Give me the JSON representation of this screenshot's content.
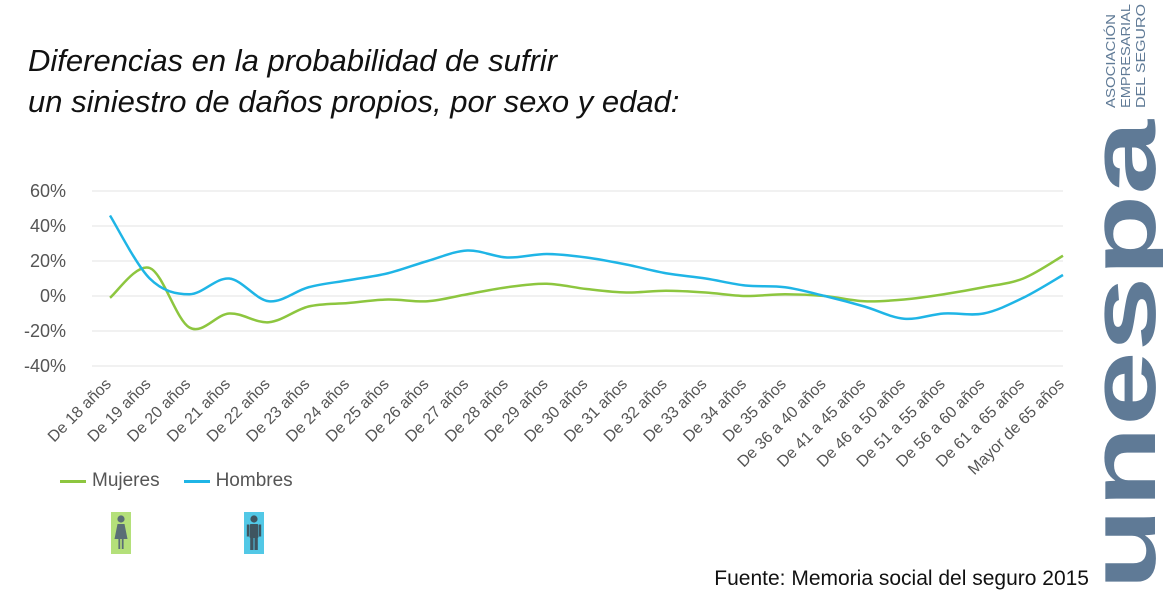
{
  "title_lines": [
    "Diferencias en la probabilidad de sufrir",
    "un siniestro de daños propios, por sexo y edad:"
  ],
  "source": "Fuente: Memoria social del seguro 2015",
  "brand": {
    "name": "unespa",
    "tagline_lines": [
      "ASOCIACIÓN",
      "EMPRESARIAL",
      "DEL SEGURO"
    ],
    "color": "#5f7a96"
  },
  "legend": [
    {
      "name": "Mujeres",
      "color": "#8dc63f",
      "icon": "woman-icon",
      "icon_bg": "#b4e07a",
      "icon_fg": "#5a6e76"
    },
    {
      "name": "Hombres",
      "color": "#1fb5e6",
      "icon": "man-icon",
      "icon_bg": "#52c8e6",
      "icon_fg": "#3f5560"
    }
  ],
  "chart_data": {
    "type": "line",
    "categories": [
      "De 18 años",
      "De 19 años",
      "De 20 años",
      "De 21 años",
      "De 22 años",
      "De 23 años",
      "De 24 años",
      "De 25 años",
      "De 26 años",
      "De 27 años",
      "De 28 años",
      "De 29 años",
      "De 30 años",
      "De 31 años",
      "De 32 años",
      "De 33 años",
      "De 34 años",
      "De 35 años",
      "De 36 a 40 años",
      "De 41 a 45 años",
      "De 46 a 50 años",
      "De 51 a 55 años",
      "De 56 a 60 años",
      "De 61 a 65 años",
      "Mayor de 65 años"
    ],
    "series": [
      {
        "name": "Mujeres",
        "color": "#8dc63f",
        "values": [
          -1,
          16,
          -18,
          -10,
          -15,
          -6,
          -4,
          -2,
          -3,
          1,
          5,
          7,
          4,
          2,
          3,
          2,
          0,
          1,
          0,
          -3,
          -2,
          1,
          5,
          10,
          23
        ]
      },
      {
        "name": "Hombres",
        "color": "#1fb5e6",
        "values": [
          46,
          10,
          1,
          10,
          -3,
          5,
          9,
          13,
          20,
          26,
          22,
          24,
          22,
          18,
          13,
          10,
          6,
          5,
          0,
          -6,
          -13,
          -10,
          -10,
          -1,
          12
        ]
      }
    ],
    "yticks": [
      60,
      40,
      20,
      0,
      -20,
      -40
    ],
    "ytick_labels": [
      "60%",
      "40%",
      "20%",
      "0%",
      "-20%",
      "-40%"
    ],
    "ylim": [
      -40,
      60
    ],
    "grid": true,
    "legend_position": "bottom-left"
  }
}
